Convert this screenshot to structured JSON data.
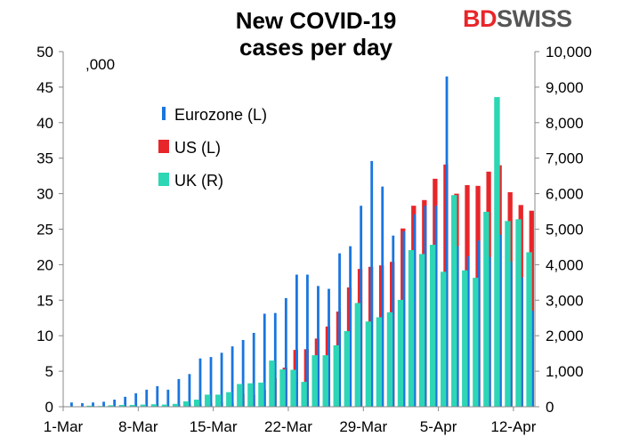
{
  "logo": {
    "part1": "BD",
    "part2": "SWISS"
  },
  "chart_data": {
    "type": "bar",
    "title": "New COVID-19 cases per day",
    "title_lines": [
      "New COVID-19",
      "cases per day"
    ],
    "unit_label": ",000",
    "grid": false,
    "legend_position": "top-left",
    "left_axis": {
      "ylim": [
        0,
        50
      ],
      "ticks": [
        0,
        5,
        10,
        15,
        20,
        25,
        30,
        35,
        40,
        45,
        50
      ],
      "tick_labels": [
        "0",
        "5",
        "10",
        "15",
        "20",
        "25",
        "30",
        "35",
        "40",
        "45",
        "50"
      ]
    },
    "right_axis": {
      "ylim": [
        0,
        10000
      ],
      "ticks": [
        0,
        1000,
        2000,
        3000,
        4000,
        5000,
        6000,
        7000,
        8000,
        9000,
        10000
      ],
      "tick_labels": [
        "0",
        "1,000",
        "2,000",
        "3,000",
        "4,000",
        "5,000",
        "6,000",
        "7,000",
        "8,000",
        "9,000",
        "10,000"
      ]
    },
    "categories": [
      "1-Mar",
      "2-Mar",
      "3-Mar",
      "4-Mar",
      "5-Mar",
      "6-Mar",
      "7-Mar",
      "8-Mar",
      "9-Mar",
      "10-Mar",
      "11-Mar",
      "12-Mar",
      "13-Mar",
      "14-Mar",
      "15-Mar",
      "16-Mar",
      "17-Mar",
      "18-Mar",
      "19-Mar",
      "20-Mar",
      "21-Mar",
      "22-Mar",
      "23-Mar",
      "24-Mar",
      "25-Mar",
      "26-Mar",
      "27-Mar",
      "28-Mar",
      "29-Mar",
      "30-Mar",
      "31-Mar",
      "1-Apr",
      "2-Apr",
      "3-Apr",
      "4-Apr",
      "5-Apr",
      "6-Apr",
      "7-Apr",
      "8-Apr",
      "9-Apr",
      "10-Apr",
      "11-Apr",
      "12-Apr",
      "13-Apr"
    ],
    "x_tick_labels": [
      {
        "index": 0,
        "label": "1-Mar"
      },
      {
        "index": 7,
        "label": "8-Mar"
      },
      {
        "index": 14,
        "label": "15-Mar"
      },
      {
        "index": 21,
        "label": "22-Mar"
      },
      {
        "index": 28,
        "label": "29-Mar"
      },
      {
        "index": 35,
        "label": "5-Apr"
      },
      {
        "index": 42,
        "label": "12-Apr"
      }
    ],
    "series": [
      {
        "name": "Eurozone (L)",
        "axis": "left",
        "color": "#1a75e0",
        "values": [
          0.6,
          0.5,
          0.6,
          0.7,
          1.0,
          1.4,
          1.9,
          2.4,
          2.9,
          2.4,
          3.9,
          4.6,
          6.8,
          7.0,
          7.6,
          8.5,
          9.4,
          10.4,
          13.1,
          13.2,
          15.3,
          18.6,
          18.6,
          17.0,
          16.6,
          21.6,
          22.6,
          28.3,
          34.6,
          31.0,
          24.1,
          24.7,
          27.1,
          28.3,
          28.3,
          46.5,
          22.6,
          21.2,
          23.4,
          21.1,
          24.2,
          20.4,
          18.2,
          13.5
        ]
      },
      {
        "name": "US (L)",
        "axis": "left",
        "color": "#e8262a",
        "values": [
          0,
          0,
          0,
          0,
          0,
          0,
          0,
          0,
          0.1,
          0.1,
          0.3,
          0.4,
          0.4,
          0.5,
          0.6,
          0.5,
          1.8,
          1.7,
          2.4,
          4.0,
          5.5,
          8.0,
          8.1,
          9.6,
          11.3,
          13.4,
          16.8,
          19.4,
          19.7,
          19.9,
          20.4,
          25.1,
          28.3,
          29.1,
          32.1,
          34.1,
          30.0,
          31.2,
          31.1,
          33.1,
          34.0,
          30.2,
          28.4,
          27.6
        ]
      },
      {
        "name": "UK (R)",
        "axis": "right",
        "color": "#2dd6b4",
        "values": [
          10,
          10,
          30,
          20,
          40,
          50,
          50,
          60,
          70,
          60,
          80,
          150,
          200,
          340,
          340,
          410,
          640,
          660,
          680,
          1300,
          1050,
          1040,
          700,
          1450,
          1450,
          1730,
          2130,
          2920,
          2400,
          2520,
          2660,
          3010,
          4410,
          4300,
          4560,
          3800,
          5960,
          3840,
          3630,
          5490,
          8720,
          5230,
          5280,
          4350
        ]
      }
    ]
  }
}
